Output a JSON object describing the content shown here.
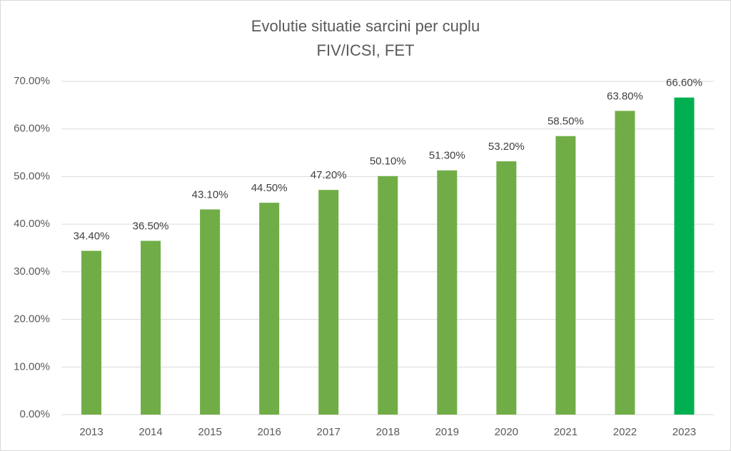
{
  "chart_data": {
    "type": "bar",
    "title": [
      "Evolutie situatie sarcini per cuplu",
      "FIV/ICSI, FET"
    ],
    "categories": [
      "2013",
      "2014",
      "2015",
      "2016",
      "2017",
      "2018",
      "2019",
      "2020",
      "2021",
      "2022",
      "2023"
    ],
    "values": [
      34.4,
      36.5,
      43.1,
      44.5,
      47.2,
      50.1,
      51.3,
      53.2,
      58.5,
      63.8,
      66.6
    ],
    "value_labels": [
      "34.40%",
      "36.50%",
      "43.10%",
      "44.50%",
      "47.20%",
      "50.10%",
      "51.30%",
      "53.20%",
      "58.50%",
      "63.80%",
      "66.60%"
    ],
    "colors": [
      "#70ad47",
      "#70ad47",
      "#70ad47",
      "#70ad47",
      "#70ad47",
      "#70ad47",
      "#70ad47",
      "#70ad47",
      "#70ad47",
      "#70ad47",
      "#00b050"
    ],
    "ylim": [
      0,
      70
    ],
    "yticks": [
      {
        "value": 0,
        "label": "0.00%"
      },
      {
        "value": 10,
        "label": "10.00%"
      },
      {
        "value": 20,
        "label": "20.00%"
      },
      {
        "value": 30,
        "label": "30.00%"
      },
      {
        "value": 40,
        "label": "40.00%"
      },
      {
        "value": 50,
        "label": "50.00%"
      },
      {
        "value": 60,
        "label": "60.00%"
      },
      {
        "value": 70,
        "label": "70.00%"
      }
    ],
    "grid": true
  }
}
